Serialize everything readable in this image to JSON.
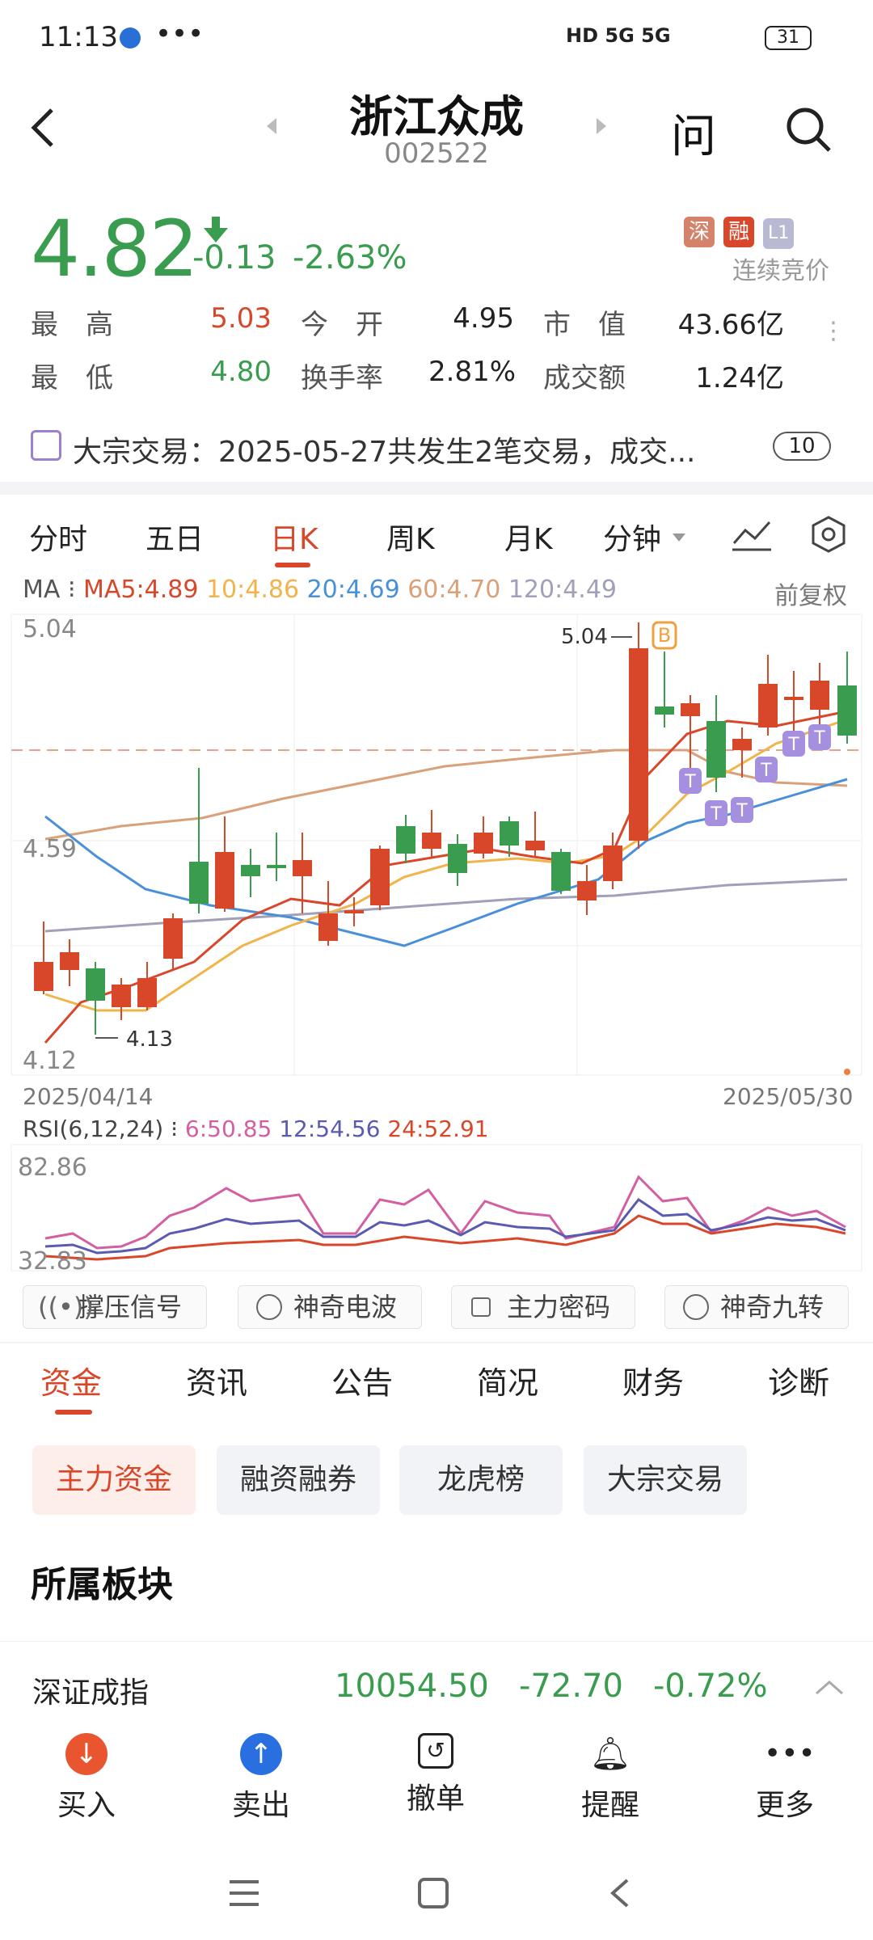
{
  "status_bar": {
    "time": "11:13",
    "battery": "31",
    "network": "HD 5G 5G"
  },
  "header": {
    "title": "浙江众成",
    "code": "002522"
  },
  "quote": {
    "price": "4.82",
    "change": "-0.13",
    "change_pct": "-2.63%",
    "badges": [
      "深",
      "融",
      "L1"
    ],
    "trading_status": "连续竞价",
    "high_label": "最　高",
    "high": "5.03",
    "open_label": "今　开",
    "open": "4.95",
    "mcap_label": "市　值",
    "mcap": "43.66亿",
    "low_label": "最　低",
    "low": "4.80",
    "turnover_label": "换手率",
    "turnover": "2.81%",
    "volume_label": "成交额",
    "volume": "1.24亿"
  },
  "notice": {
    "text": "大宗交易：2025-05-27共发生2笔交易，成交...",
    "count": "10"
  },
  "chart_tabs": [
    "分时",
    "五日",
    "日K",
    "周K",
    "月K",
    "分钟"
  ],
  "active_tab": "日K",
  "ma": {
    "label": "MA",
    "ma5": "MA5:4.89",
    "ma10": "10:4.86",
    "ma20": "20:4.69",
    "ma60": "60:4.70",
    "ma120": "120:4.49",
    "adjust": "前复权"
  },
  "kline": {
    "y_top": "5.04",
    "y_mid": "4.59",
    "y_bottom": "4.12",
    "high_marker": "5.04",
    "low_marker": "4.13",
    "date_start": "2025/04/14",
    "date_end": "2025/05/30",
    "badge_b": "B",
    "badge_t": "T"
  },
  "rsi": {
    "label": "RSI(6,12,24)",
    "r6": "6:50.85",
    "r12": "12:54.56",
    "r24": "24:52.91",
    "y_top": "82.86",
    "y_bottom": "32.83"
  },
  "signals": [
    "撑压信号",
    "神奇电波",
    "主力密码",
    "神奇九转"
  ],
  "sub_tabs": [
    "资金",
    "资讯",
    "公告",
    "简况",
    "财务",
    "诊断"
  ],
  "pills": [
    "主力资金",
    "融资融券",
    "龙虎榜",
    "大宗交易"
  ],
  "section_title": "所属板块",
  "index_bar": {
    "name": "深证成指",
    "value": "10054.50",
    "change": "-72.70",
    "pct": "-0.72%"
  },
  "bottom_nav": [
    "买入",
    "卖出",
    "撤单",
    "提醒",
    "更多"
  ],
  "colors": {
    "up": "#d9472b",
    "down": "#3a9c4e",
    "ma5": "#d9472b",
    "ma10": "#f0b44a",
    "ma20": "#4a90d9",
    "ma60": "#d9a07a",
    "ma120": "#a0a0b8"
  }
}
